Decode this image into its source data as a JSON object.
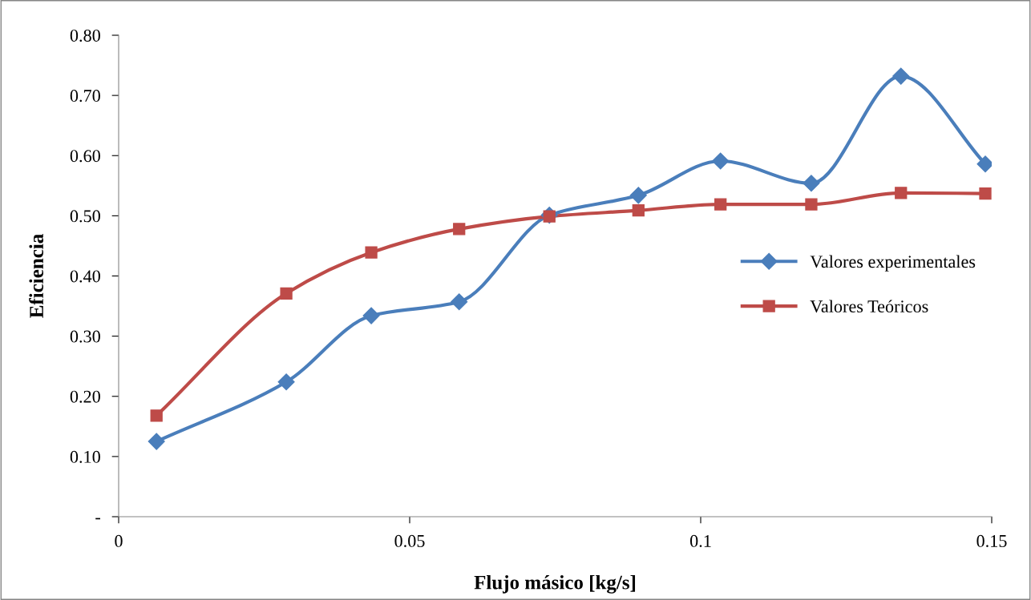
{
  "chart_data": {
    "type": "line",
    "xlabel": "Flujo másico [kg/s]",
    "ylabel": "Eficiencia",
    "xlim": [
      0,
      0.15
    ],
    "xticks": [
      0,
      0.05,
      0.1,
      0.15
    ],
    "ylim": [
      0,
      0.8
    ],
    "yticks": [
      {
        "value": 0,
        "label": "-"
      },
      {
        "value": 0.1,
        "label": "0.10"
      },
      {
        "value": 0.2,
        "label": "0.20"
      },
      {
        "value": 0.3,
        "label": "0.30"
      },
      {
        "value": 0.4,
        "label": "0.40"
      },
      {
        "value": 0.5,
        "label": "0.50"
      },
      {
        "value": 0.6,
        "label": "0.60"
      },
      {
        "value": 0.7,
        "label": "0.70"
      },
      {
        "value": 0.8,
        "label": "0.80"
      }
    ],
    "legend": "right",
    "grid": false,
    "series": [
      {
        "name": "Valores experimentales",
        "color": "#4a7ebb",
        "marker": "diamond",
        "x": [
          0.0065,
          0.0288,
          0.0434,
          0.0585,
          0.074,
          0.0893,
          0.1034,
          0.119,
          0.1344,
          0.1489
        ],
        "values": [
          0.125,
          0.224,
          0.334,
          0.357,
          0.501,
          0.534,
          0.591,
          0.554,
          0.732,
          0.586
        ]
      },
      {
        "name": "Valores Teóricos",
        "color": "#be4b48",
        "marker": "square",
        "x": [
          0.0065,
          0.0288,
          0.0434,
          0.0585,
          0.074,
          0.0893,
          0.1034,
          0.119,
          0.1344,
          0.1489
        ],
        "values": [
          0.168,
          0.371,
          0.439,
          0.478,
          0.499,
          0.509,
          0.519,
          0.519,
          0.538,
          0.537
        ]
      }
    ]
  }
}
